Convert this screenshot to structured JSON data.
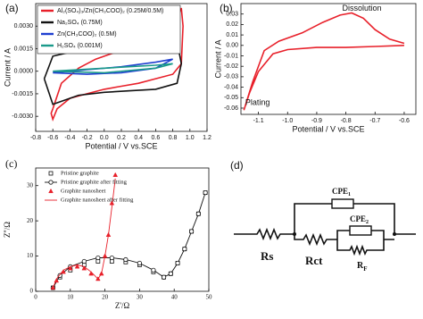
{
  "chart_data": [
    {
      "type": "line",
      "panel": "(a)",
      "xlabel": "Potential / V vs.SCE",
      "ylabel": "Current / A",
      "xlim": [
        -0.8,
        1.2
      ],
      "xticks": [
        -0.8,
        -0.6,
        -0.4,
        -0.2,
        {
          "value": 0,
          "label": "0.0"
        },
        0.2,
        0.4,
        0.6,
        0.8,
        {
          "value": 1,
          "label": "1.0"
        },
        1.2
      ],
      "ylim": [
        -0.004,
        0.0045
      ],
      "yticks": [
        {
          "value": -0.003,
          "label": "-0.0030"
        },
        {
          "value": -0.0015,
          "label": "-0.0015"
        },
        {
          "value": 0,
          "label": "0.0000"
        },
        {
          "value": 0.0015,
          "label": "0.0015"
        },
        {
          "value": 0.003,
          "label": "0.0030"
        }
      ],
      "legend": "upper left",
      "legend_box": true,
      "series": [
        {
          "name": "Al₂(SO₄)₃/Zn(CH₃COO)₂ (0.25M/0.5M)",
          "color": "#e8202a",
          "x": [
            -0.6,
            -0.5,
            -0.3,
            -0.1,
            0.1,
            0.3,
            0.5,
            0.7,
            0.85,
            0.9,
            0.92,
            0.9,
            0.8,
            0.6,
            0.4,
            0.2,
            0.0,
            -0.2,
            -0.4,
            -0.55,
            -0.6,
            -0.62,
            -0.6
          ],
          "values": [
            -0.0025,
            -0.0008,
            0.0002,
            0.0008,
            0.0012,
            0.0015,
            0.0018,
            0.0025,
            0.0035,
            0.0042,
            0.003,
            0.0005,
            -0.0002,
            -0.0005,
            -0.0008,
            -0.001,
            -0.0012,
            -0.0015,
            -0.0018,
            -0.0025,
            -0.0032,
            -0.0028,
            -0.0025
          ]
        },
        {
          "name": "Na₂SO₄ (0.75M)",
          "color": "#111111",
          "x": [
            -0.7,
            -0.6,
            -0.3,
            0,
            0.3,
            0.6,
            0.85,
            0.9,
            0.85,
            0.6,
            0.3,
            0,
            -0.3,
            -0.6,
            -0.7
          ],
          "values": [
            -0.0005,
            0.001,
            0.0014,
            0.0016,
            0.0017,
            0.0018,
            0.002,
            0.0005,
            -0.0008,
            -0.0012,
            -0.0013,
            -0.0014,
            -0.0016,
            -0.0022,
            -0.0005
          ]
        },
        {
          "name": "Zn(CH₃COO)₂ (0.5M)",
          "color": "#1f3fd0",
          "x": [
            -0.6,
            -0.2,
            0.2,
            0.6,
            0.8,
            0.6,
            0.2,
            -0.2,
            -0.6
          ],
          "values": [
            -0.0001,
            0.0001,
            0.0003,
            0.0006,
            0.0008,
            0.0002,
            -0.0001,
            -0.0002,
            -0.0001
          ]
        },
        {
          "name": "H₂SO₄ (0.001M)",
          "color": "#1a9a8a",
          "x": [
            -0.6,
            0,
            0.6,
            0.8,
            0.6,
            0,
            -0.6
          ],
          "values": [
            0,
            0.0002,
            0.0004,
            0.0005,
            0.0002,
            -0.0001,
            0
          ]
        }
      ]
    },
    {
      "type": "line",
      "panel": "(b)",
      "xlabel": "Potential / V vs.SCE",
      "ylabel": "Current / A",
      "xlim": [
        -1.16,
        -0.56
      ],
      "xticks": [
        -1.1,
        {
          "value": -1,
          "label": "-1.0"
        },
        -0.9,
        -0.8,
        -0.7,
        -0.6
      ],
      "ylim": [
        -0.066,
        0.04
      ],
      "yticks": [
        -0.06,
        -0.05,
        -0.04,
        -0.03,
        -0.02,
        -0.01,
        {
          "value": 0,
          "label": "0.00"
        },
        0.01,
        0.02,
        0.03
      ],
      "annotations": [
        "Dissolution",
        "Plating"
      ],
      "series": [
        {
          "color": "#e8202a",
          "x": [
            -0.6,
            -0.7,
            -0.8,
            -0.9,
            -1.0,
            -1.05,
            -1.1,
            -1.13,
            -1.15,
            -1.12,
            -1.08,
            -1.03,
            -0.95,
            -0.88,
            -0.82,
            -0.78,
            -0.74,
            -0.7,
            -0.65,
            -0.6
          ],
          "values": [
            0,
            -0.001,
            -0.002,
            -0.002,
            -0.004,
            -0.008,
            -0.025,
            -0.045,
            -0.062,
            -0.035,
            -0.005,
            0.004,
            0.012,
            0.022,
            0.029,
            0.031,
            0.026,
            0.015,
            0.006,
            0.002
          ]
        }
      ]
    },
    {
      "type": "scatter",
      "panel": "(c)",
      "xlabel": "Z'/Ω",
      "ylabel": "Z''/Ω",
      "xlim": [
        0,
        50
      ],
      "xticks": [
        0,
        10,
        20,
        30,
        40,
        50
      ],
      "ylim": [
        0,
        35
      ],
      "yticks": [
        0,
        10,
        20,
        30
      ],
      "legend": "upper left",
      "series": [
        {
          "name": "Pristine graphite",
          "color": "#111111",
          "marker": "square",
          "line": false,
          "x": [
            5,
            7,
            10,
            14,
            18,
            22,
            26,
            30,
            34,
            37,
            39,
            41,
            43,
            45,
            47,
            49
          ],
          "values": [
            1,
            4,
            6,
            7.5,
            8.5,
            8.5,
            8.3,
            7.5,
            5.5,
            4,
            5,
            8,
            12,
            17,
            22,
            28
          ]
        },
        {
          "name": "Pristine graphite after fitting",
          "color": "#111111",
          "marker": "circle",
          "line": true,
          "x": [
            5,
            7,
            10,
            14,
            18,
            22,
            26,
            30,
            34,
            37,
            39,
            41,
            43,
            45,
            47,
            49
          ],
          "values": [
            1,
            4.5,
            7,
            8.5,
            9.5,
            9.5,
            9,
            8,
            6,
            4,
            5,
            8,
            12,
            17,
            22,
            28
          ]
        },
        {
          "name": "Graphite nanosheet",
          "color": "#e8202a",
          "marker": "triangle",
          "line": false,
          "x": [
            5,
            6,
            8,
            10,
            12,
            14,
            16,
            18,
            19,
            20,
            21,
            22,
            23
          ],
          "values": [
            1,
            3,
            5.5,
            6.5,
            7,
            6.5,
            5,
            3.5,
            5,
            10,
            16,
            25,
            33
          ]
        },
        {
          "name": "Graphite nanosheet after fitting",
          "color": "#e8202a",
          "line": true,
          "x": [
            5,
            6,
            8,
            10,
            12,
            14,
            16,
            18,
            19,
            20,
            21,
            22,
            23
          ],
          "values": [
            1,
            3.5,
            6,
            7,
            7.5,
            7,
            5.5,
            3.5,
            5,
            10,
            16,
            24,
            32
          ]
        }
      ]
    }
  ],
  "circuit": {
    "panel": "(d)",
    "rs": "Rs",
    "rct": "Rct",
    "cpe1": {
      "text": "CPE",
      "subscript": "1"
    },
    "cpe2": {
      "text": "CPE",
      "subscript": "2"
    },
    "rf": {
      "text": "R",
      "subscript": "F"
    }
  }
}
